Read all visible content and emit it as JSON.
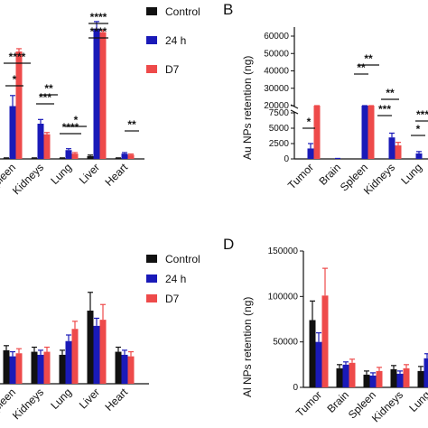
{
  "chart_data": [
    {
      "panel": "",
      "type": "bar",
      "categories": [
        "Spleen",
        "Kidneys",
        "Lung",
        "Liver",
        "Heart"
      ],
      "series": [
        {
          "name": "Control",
          "values": [
            0.2,
            0.2,
            0.2,
            0.8,
            0.2
          ],
          "errors": [
            0.1,
            0.1,
            0.1,
            0.3,
            0.1
          ],
          "color": "#111111"
        },
        {
          "name": "24 h",
          "values": [
            15,
            10,
            2.5,
            37,
            1.5
          ],
          "errors": [
            3,
            1.2,
            0.4,
            2,
            0.3
          ],
          "color": "#1a1ab8"
        },
        {
          "name": "D7",
          "values": [
            30.5,
            7,
            1.5,
            36,
            1.2
          ],
          "errors": [
            0.8,
            0.5,
            0.3,
            0.5,
            0.2
          ],
          "color": "#ee4a4a"
        }
      ],
      "ylim": [
        0,
        40
      ],
      "legend": "top-right",
      "annotations": [
        "*",
        "****",
        "***",
        "**",
        "****",
        "*",
        "****",
        "****",
        "****",
        "**"
      ]
    },
    {
      "panel": "B",
      "type": "bar",
      "ylabel": "Au NPs retention (ng)",
      "categories": [
        "Tumor",
        "Brain",
        "Spleen",
        "Kidneys",
        "Lung"
      ],
      "yticks_upper": [
        "20000",
        "30000",
        "40000",
        "50000",
        "60000"
      ],
      "yticks_lower": [
        "0",
        "2500",
        "5000",
        "7500"
      ],
      "series": [
        {
          "name": "Control",
          "values": [
            0,
            0,
            0,
            0,
            0
          ],
          "color": "#111111"
        },
        {
          "name": "24 h",
          "values": [
            1700,
            50,
            16500,
            3500,
            900
          ],
          "errors": [
            800,
            30,
            1500,
            700,
            300
          ],
          "color": "#1a1ab8"
        },
        {
          "name": "D7",
          "values": [
            12500,
            0,
            14500,
            2200,
            0
          ],
          "errors": [
            2500,
            0,
            800,
            500,
            0
          ],
          "color": "#ee4a4a"
        }
      ],
      "annotations": [
        "*",
        "**",
        "**",
        "**",
        "***",
        "*",
        "***"
      ]
    },
    {
      "panel": "",
      "type": "bar",
      "categories": [
        "Spleen",
        "Kidneys",
        "Lung",
        "Liver",
        "Heart"
      ],
      "series": [
        {
          "name": "Control",
          "values": [
            22,
            21,
            19,
            48,
            21
          ],
          "errors": [
            3,
            3,
            3,
            12,
            3
          ],
          "color": "#111111"
        },
        {
          "name": "24 h",
          "values": [
            18,
            19,
            28,
            38,
            19
          ],
          "errors": [
            3,
            3,
            4,
            5,
            3
          ],
          "color": "#1a1ab8"
        },
        {
          "name": "D7",
          "values": [
            20,
            21,
            36,
            42,
            18
          ],
          "errors": [
            3,
            3,
            5,
            10,
            3
          ],
          "color": "#ee4a4a"
        }
      ],
      "ylim": [
        0,
        80
      ],
      "legend": "top-right"
    },
    {
      "panel": "D",
      "type": "bar",
      "ylabel": "Al NPs retention (ng)",
      "yticks": [
        "0",
        "50000",
        "100000",
        "150000"
      ],
      "ylim": [
        0,
        150000
      ],
      "categories": [
        "Tumor",
        "Brain",
        "Spleen",
        "Kidneys",
        "Lung"
      ],
      "series": [
        {
          "name": "Control",
          "values": [
            74000,
            21000,
            14000,
            20000,
            18000
          ],
          "errors": [
            21000,
            4000,
            4000,
            4000,
            5000
          ],
          "color": "#111111"
        },
        {
          "name": "24 h",
          "values": [
            50000,
            25000,
            13000,
            15000,
            32000
          ],
          "errors": [
            10000,
            3000,
            3000,
            3000,
            5000
          ],
          "color": "#1a1ab8"
        },
        {
          "name": "D7",
          "values": [
            101000,
            27000,
            18000,
            21000,
            0
          ],
          "errors": [
            30000,
            4000,
            4000,
            4000,
            0
          ],
          "color": "#ee4a4a"
        }
      ]
    }
  ],
  "legend": {
    "top": [
      "Control",
      "24 h",
      "D7"
    ],
    "bottom": [
      "Control",
      "24 h",
      "D7"
    ]
  },
  "panel_labels": {
    "b": "B",
    "d": "D"
  },
  "ylabels": {
    "b": "Au NPs retention (ng)",
    "d": "Al NPs retention (ng)"
  }
}
